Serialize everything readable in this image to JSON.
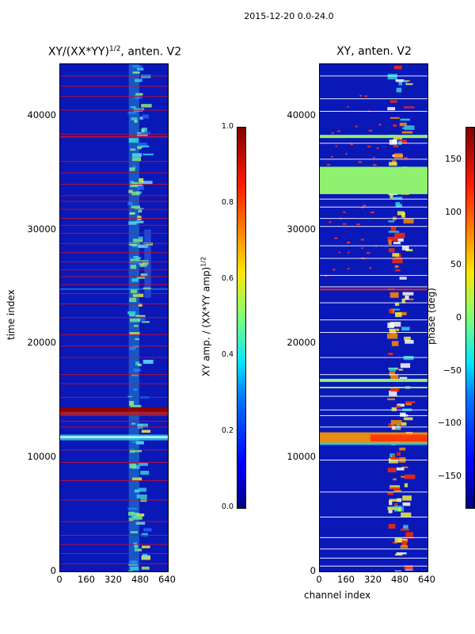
{
  "suptitle": "2015-12-20 0.0-24.0",
  "chart_data": [
    {
      "type": "heatmap",
      "title": "XY/(XX*YY)^{1/2}, anten. V2",
      "title_main": "XY/(XX*YY)",
      "title_sup": "1/2",
      "title_tail": ", anten. V2",
      "xlabel": "",
      "ylabel": "time index",
      "xlim": [
        0,
        640
      ],
      "ylim": [
        0,
        44500
      ],
      "xticks": [
        "0",
        "160",
        "320",
        "480",
        "640"
      ],
      "yticks": [
        "0",
        "10000",
        "20000",
        "30000",
        "40000"
      ],
      "colorbar": {
        "label": "XY amp. / (XX*YY amp)^{1/2}",
        "label_main": "XY amp. / (XX*YY amp)",
        "label_sup": "1/2",
        "range": [
          0.0,
          1.0
        ],
        "ticks": [
          "0.0",
          "0.2",
          "0.4",
          "0.6",
          "0.8",
          "1.0"
        ]
      }
    },
    {
      "type": "heatmap",
      "title": "XY, anten. V2",
      "xlabel": "channel index",
      "ylabel": "",
      "xlim": [
        0,
        640
      ],
      "ylim": [
        0,
        44500
      ],
      "xticks": [
        "0",
        "160",
        "320",
        "480",
        "640"
      ],
      "yticks": [
        "0",
        "10000",
        "20000",
        "30000",
        "40000"
      ],
      "colorbar": {
        "label": "phase (deg)",
        "range": [
          -180,
          180
        ],
        "ticks": [
          "−150",
          "−100",
          "−50",
          "0",
          "50",
          "100",
          "150"
        ]
      }
    }
  ],
  "colors": {
    "background": "#0a18b8",
    "red_line": "#c8102e",
    "dark_red": "#8b0000",
    "green_band": "#90f070",
    "cyan": "#30d0e0",
    "yellow": "#f0f040"
  }
}
